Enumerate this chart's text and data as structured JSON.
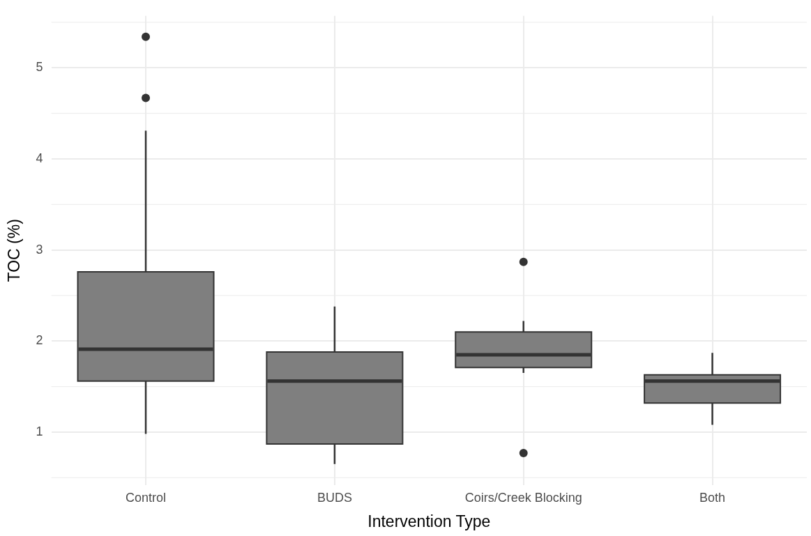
{
  "chart_data": {
    "type": "box",
    "xlabel": "Intervention Type",
    "ylabel": "TOC (%)",
    "categories": [
      "Control",
      "BUDS",
      "Coirs/Creek Blocking",
      "Both"
    ],
    "boxes": [
      {
        "low": 0.98,
        "q1": 1.56,
        "median": 1.91,
        "q3": 2.76,
        "high": 4.31,
        "outliers": [
          4.67,
          5.34
        ]
      },
      {
        "low": 0.65,
        "q1": 0.87,
        "median": 1.56,
        "q3": 1.88,
        "high": 2.38
      },
      {
        "low": 1.65,
        "q1": 1.71,
        "median": 1.85,
        "q3": 2.1,
        "high": 2.22,
        "outliers": [
          2.87,
          0.77
        ]
      },
      {
        "low": 1.08,
        "q1": 1.32,
        "median": 1.56,
        "q3": 1.63,
        "high": 1.87
      }
    ],
    "color": "#7f7f7f",
    "ylim": [
      0.42,
      5.57
    ],
    "yticks": [
      1,
      2,
      3,
      4,
      5
    ],
    "grid": true
  }
}
